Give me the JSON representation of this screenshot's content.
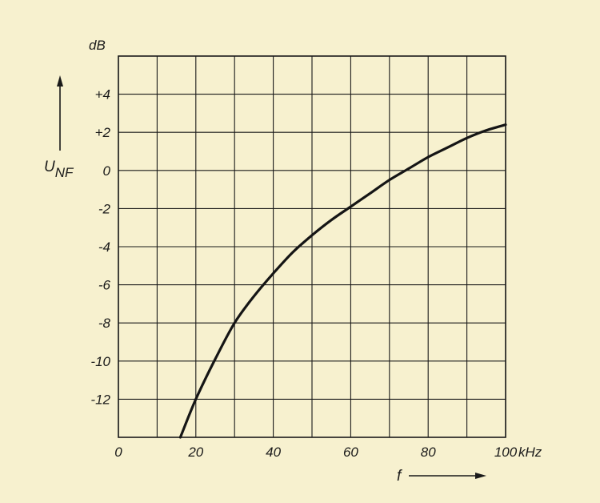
{
  "chart_data": {
    "type": "line",
    "ylabel_main": "U",
    "ylabel_sub": "NF",
    "yunit": "dB",
    "xlabel": "f",
    "xunit": "kHz",
    "xlim": [
      0,
      100
    ],
    "ylim": [
      -14,
      6
    ],
    "grid": true,
    "x_ticks": [
      {
        "value": 0,
        "label": "0"
      },
      {
        "value": 20,
        "label": "20"
      },
      {
        "value": 40,
        "label": "40"
      },
      {
        "value": 60,
        "label": "60"
      },
      {
        "value": 80,
        "label": "80"
      },
      {
        "value": 100,
        "label": "100"
      }
    ],
    "y_ticks": [
      {
        "value": 4,
        "label": "+4"
      },
      {
        "value": 2,
        "label": "+2"
      },
      {
        "value": 0,
        "label": "0"
      },
      {
        "value": -2,
        "label": "-2"
      },
      {
        "value": -4,
        "label": "-4"
      },
      {
        "value": -6,
        "label": "-6"
      },
      {
        "value": -8,
        "label": "-8"
      },
      {
        "value": -10,
        "label": "-10"
      },
      {
        "value": -12,
        "label": "-12"
      }
    ],
    "series": [
      {
        "color": "#151515",
        "x": [
          16,
          20,
          25,
          30,
          35,
          40,
          45,
          50,
          55,
          60,
          65,
          70,
          75,
          80,
          85,
          90,
          95,
          100
        ],
        "y": [
          -14,
          -12,
          -9.9,
          -8,
          -6.6,
          -5.4,
          -4.3,
          -3.4,
          -2.6,
          -1.9,
          -1.2,
          -0.5,
          0.1,
          0.7,
          1.2,
          1.7,
          2.1,
          2.4
        ]
      }
    ]
  }
}
